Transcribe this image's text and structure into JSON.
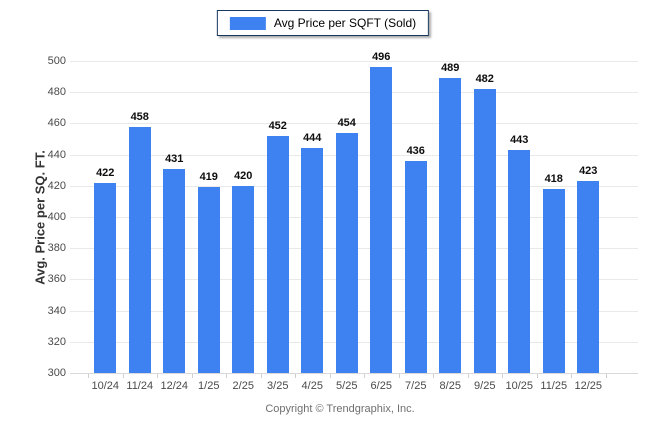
{
  "legend": {
    "label": "Avg Price per SQFT (Sold)"
  },
  "footer": {
    "copyright": "Copyright © Trendgraphix, Inc."
  },
  "chart_data": {
    "type": "bar",
    "title": "",
    "legend": "Avg Price per SQFT (Sold)",
    "legend_position": "top-center",
    "categories": [
      "10/24",
      "11/24",
      "12/24",
      "1/25",
      "2/25",
      "3/25",
      "4/25",
      "5/25",
      "6/25",
      "7/25",
      "8/25",
      "9/25",
      "10/25",
      "11/25",
      "12/25"
    ],
    "values": [
      422,
      458,
      431,
      419,
      420,
      452,
      444,
      454,
      496,
      436,
      489,
      482,
      443,
      418,
      423
    ],
    "xlabel": "",
    "ylabel": "Avg. Price per SQ. FT.",
    "ylim": [
      300,
      500
    ],
    "ytick_step": 20,
    "grid": true,
    "bar_color": "#3E82F2",
    "legend_border_color": "#17375E",
    "value_label_color": "#0d0d0d",
    "tick_label_color": "#4a4a4a",
    "gridline_color": "#e9e9e9"
  }
}
